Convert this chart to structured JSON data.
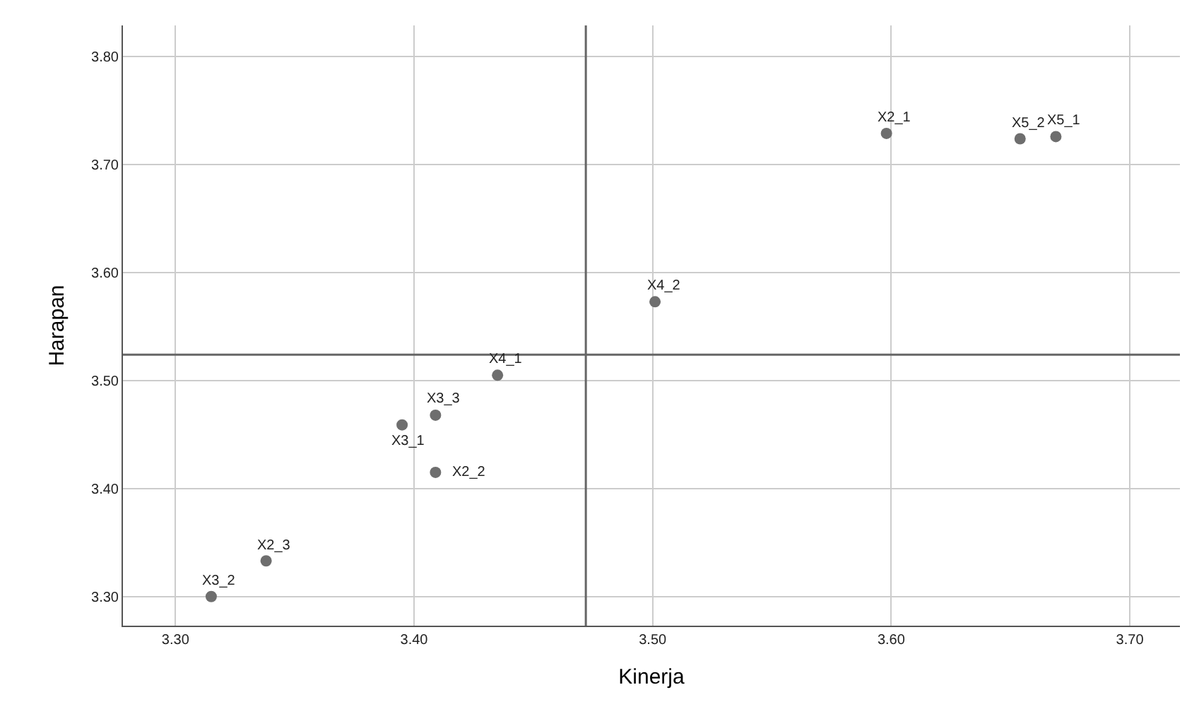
{
  "chart_data": {
    "type": "scatter",
    "xlabel": "Kinerja",
    "ylabel": "Harapan",
    "x": [
      3.315,
      3.338,
      3.395,
      3.409,
      3.409,
      3.435,
      3.501,
      3.598,
      3.654,
      3.669
    ],
    "series": [
      {
        "color": "#6e6e6e",
        "values": [
          3.3,
          3.333,
          3.459,
          3.468,
          3.415,
          3.505,
          3.573,
          3.729,
          3.724,
          3.726
        ]
      }
    ],
    "annotations": [
      {
        "text": "X3_2",
        "x": 3.315,
        "y": 3.3
      },
      {
        "text": "X2_3",
        "x": 3.338,
        "y": 3.333
      },
      {
        "text": "X3_1",
        "x": 3.395,
        "y": 3.459
      },
      {
        "text": "X3_3",
        "x": 3.409,
        "y": 3.468
      },
      {
        "text": "X2_2",
        "x": 3.409,
        "y": 3.415
      },
      {
        "text": "X4_1",
        "x": 3.435,
        "y": 3.505
      },
      {
        "text": "X4_2",
        "x": 3.501,
        "y": 3.573
      },
      {
        "text": "X2_1",
        "x": 3.598,
        "y": 3.729
      },
      {
        "text": "X5_2",
        "x": 3.654,
        "y": 3.724
      },
      {
        "text": "X5_1",
        "x": 3.669,
        "y": 3.726
      }
    ],
    "ref_lines": [
      {
        "axis": "x",
        "value": 3.472,
        "color": "#666666"
      },
      {
        "axis": "y",
        "value": 3.524,
        "color": "#666666"
      }
    ],
    "xlim": [
      3.278,
      3.721
    ],
    "ylim": [
      3.273,
      3.829
    ],
    "xticks": [
      {
        "value": 3.3,
        "label": "3.30"
      },
      {
        "value": 3.4,
        "label": "3.40"
      },
      {
        "value": 3.5,
        "label": "3.50"
      },
      {
        "value": 3.6,
        "label": "3.60"
      },
      {
        "value": 3.7,
        "label": "3.70"
      }
    ],
    "yticks": [
      {
        "value": 3.3,
        "label": "3.30"
      },
      {
        "value": 3.4,
        "label": "3.40"
      },
      {
        "value": 3.5,
        "label": "3.50"
      },
      {
        "value": 3.6,
        "label": "3.60"
      },
      {
        "value": 3.7,
        "label": "3.70"
      },
      {
        "value": 3.8,
        "label": "3.80"
      }
    ],
    "grid": true,
    "marker": "circle"
  }
}
